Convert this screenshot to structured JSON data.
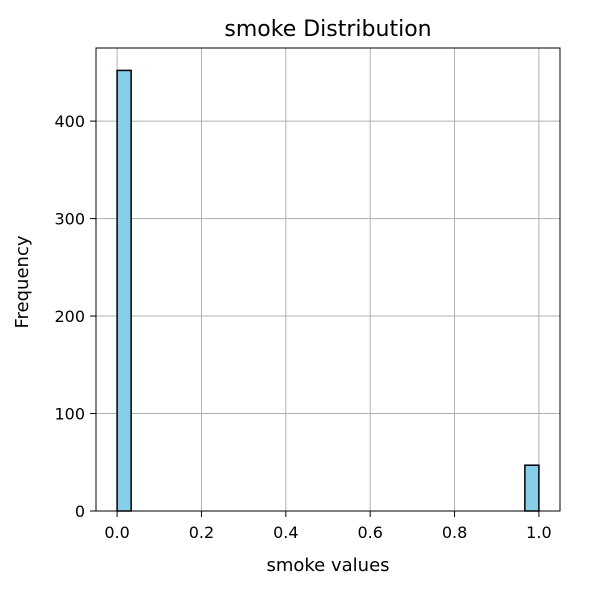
{
  "chart_data": {
    "type": "bar",
    "title": "smoke Distribution",
    "xlabel": "smoke values",
    "ylabel": "Frequency",
    "xlim": [
      -0.05,
      1.05
    ],
    "ylim": [
      0,
      475
    ],
    "x_ticks": [
      0.0,
      0.2,
      0.4,
      0.6,
      0.8,
      1.0
    ],
    "x_tick_labels": [
      "0.0",
      "0.2",
      "0.4",
      "0.6",
      "0.8",
      "1.0"
    ],
    "y_ticks": [
      0,
      100,
      200,
      300,
      400
    ],
    "y_tick_labels": [
      "0",
      "100",
      "200",
      "300",
      "400"
    ],
    "bins": [
      {
        "x0": 0.0,
        "x1": 0.0333,
        "value": 452
      },
      {
        "x0": 0.9667,
        "x1": 1.0,
        "value": 47
      }
    ],
    "grid": true,
    "colors": {
      "bar_fill": "#87ceeb",
      "bar_edge": "#000000",
      "grid": "#b0b0b0",
      "axis": "#000000"
    }
  }
}
